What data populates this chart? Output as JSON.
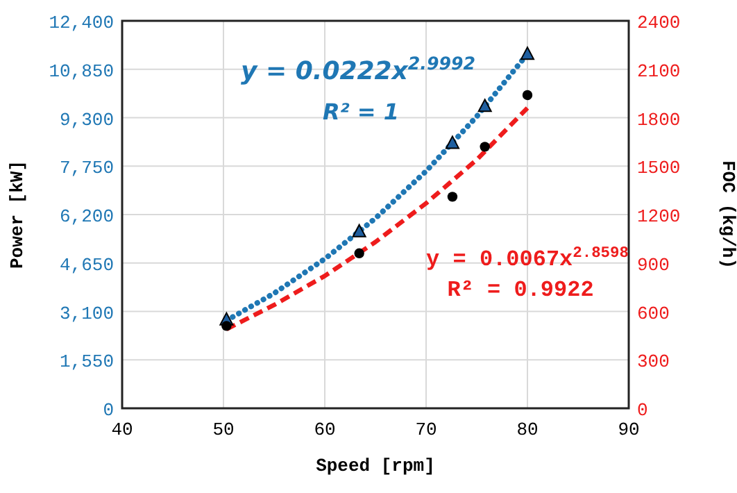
{
  "chart_data": {
    "type": "scatter",
    "xlabel": "Speed [rpm]",
    "ylabel": "Power [kW]",
    "y2label": "FOC (kg/h)",
    "xlim": [
      40,
      90
    ],
    "xticks": [
      40,
      50,
      60,
      70,
      80,
      90
    ],
    "ylim": [
      0,
      12400
    ],
    "yticks": [
      0,
      {
        "value": 1550,
        "label": "1,550"
      },
      {
        "value": 3100,
        "label": "3,100"
      },
      {
        "value": 4650,
        "label": "4,650"
      },
      {
        "value": 6200,
        "label": "6,200"
      },
      {
        "value": 7750,
        "label": "7,750"
      },
      {
        "value": 9300,
        "label": "9,300"
      },
      {
        "value": 10850,
        "label": "10,850"
      },
      {
        "value": 12400,
        "label": "12,400"
      }
    ],
    "y2lim": [
      0,
      2400
    ],
    "y2ticks": [
      0,
      300,
      600,
      900,
      1200,
      1500,
      1800,
      2100,
      2400
    ],
    "grid": true,
    "annotations": [
      "y = 0.0222x$^{2.9992}$",
      "R² = 1",
      "y = 0.0067x$^{2.8598}$",
      "R² = 0.9922"
    ],
    "series": [
      {
        "type": "line",
        "color": "#1f77b4",
        "line_style": "dotted",
        "marker": "none",
        "x": [
          50.3,
          55,
          60,
          65,
          70,
          75,
          80
        ],
        "values": [
          2810,
          3680,
          4780,
          6080,
          7590,
          9340,
          11340
        ]
      },
      {
        "type": "line",
        "axis": "y2",
        "color": "#ee1c1c",
        "line_style": "dashed",
        "marker": "none",
        "x": [
          50.3,
          55,
          60,
          65,
          70,
          75,
          80
        ],
        "values": [
          490,
          640,
          820,
          1030,
          1270,
          1540,
          1860
        ]
      },
      {
        "color": "#1f5fa0",
        "marker": "triangle",
        "x": [
          50.3,
          63.4,
          72.6,
          75.8,
          80
        ],
        "values": [
          2830,
          5650,
          8480,
          9660,
          11330
        ]
      },
      {
        "axis": "y2",
        "color": "#000000",
        "marker": "circle",
        "x": [
          50.3,
          63.4,
          72.6,
          75.8,
          80
        ],
        "values": [
          510,
          960,
          1310,
          1620,
          1940
        ]
      }
    ]
  }
}
